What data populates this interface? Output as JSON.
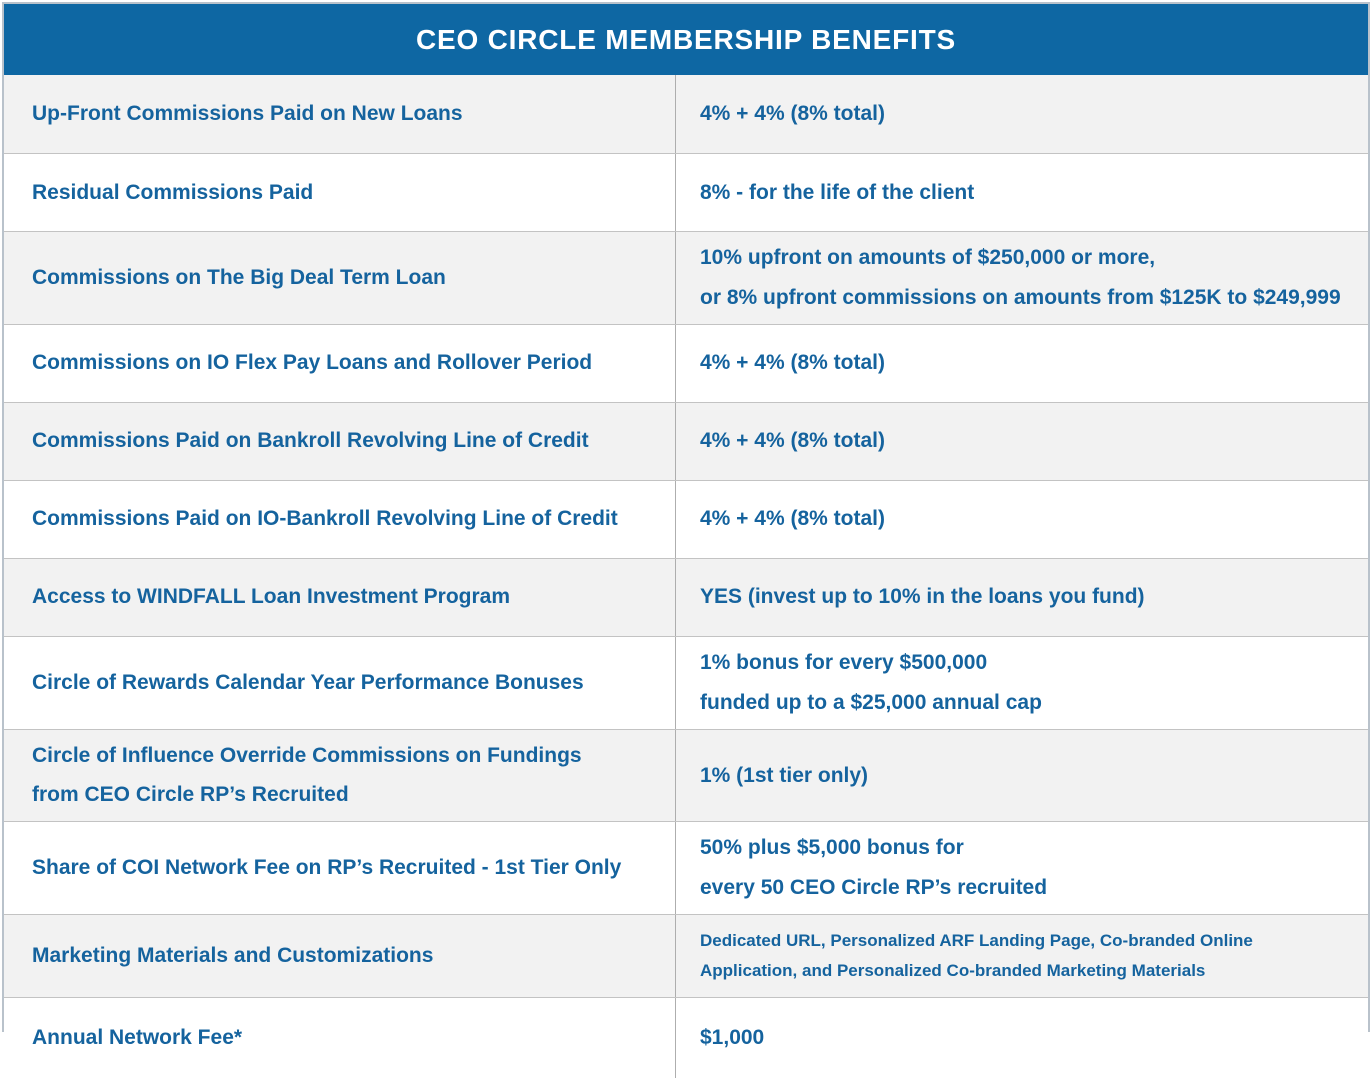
{
  "header": {
    "title": "CEO CIRCLE MEMBERSHIP BENEFITS"
  },
  "colors": {
    "header_bg": "#0e67a3",
    "header_text": "#ffffff",
    "body_text_blue": "#15639e",
    "row_alt_bg": "#f2f2f2",
    "row_bg": "#ffffff",
    "divider_gray": "#b3b3b3",
    "outer_border": "#b9c2cb"
  },
  "table": {
    "columns": [
      "benefit",
      "value"
    ],
    "rows": [
      {
        "label": "Up-Front Commissions Paid on New Loans",
        "value": "4% + 4% (8% total)"
      },
      {
        "label": "Residual Commissions Paid",
        "value": "8% - for the life of the client"
      },
      {
        "label": "Commissions on The Big Deal Term Loan",
        "value": "10% upfront on amounts of $250,000 or more,\nor 8% upfront commissions on amounts from $125K to $249,999"
      },
      {
        "label": "Commissions on IO Flex Pay Loans and Rollover Period",
        "value": "4% + 4% (8% total)"
      },
      {
        "label": "Commissions Paid on Bankroll Revolving Line of Credit",
        "value": "4% + 4% (8% total)"
      },
      {
        "label": "Commissions Paid on IO-Bankroll Revolving Line of Credit",
        "value": "4% + 4% (8% total)"
      },
      {
        "label": "Access to WINDFALL Loan Investment Program",
        "value": "YES (invest up to 10% in the loans you fund)"
      },
      {
        "label": "Circle of Rewards Calendar Year Performance Bonuses",
        "value": "1% bonus for every $500,000\nfunded up to a $25,000 annual cap"
      },
      {
        "label": "Circle of Influence Override Commissions on Fundings\nfrom CEO Circle RP’s Recruited",
        "value": "1% (1st tier only)"
      },
      {
        "label": "Share of COI Network Fee on RP’s Recruited - 1st Tier Only",
        "value": "50% plus $5,000 bonus for\nevery 50 CEO Circle RP’s recruited"
      },
      {
        "label": "Marketing Materials and Customizations",
        "value": "Dedicated URL, Personalized ARF Landing Page, Co-branded Online\nApplication, and Personalized Co-branded Marketing Materials"
      },
      {
        "label": "Annual Network Fee*",
        "value": "$1,000"
      }
    ]
  }
}
